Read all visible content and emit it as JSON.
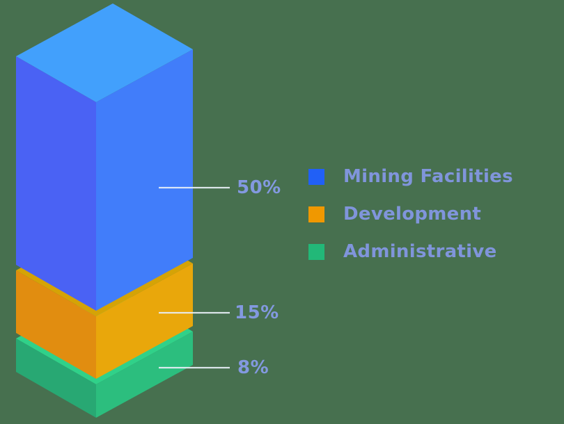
{
  "chart_data": {
    "type": "bar",
    "variant": "isometric-3d-stacked-column",
    "title": "",
    "unit": "%",
    "legend_position": "right",
    "grid": false,
    "segments": [
      {
        "label": "Mining Facilities",
        "value": 50,
        "value_label": "50%",
        "colors": {
          "top": "#42A0FC",
          "left": "#4A62F4",
          "right": "#417DFA"
        },
        "legend_color": "#2160F6"
      },
      {
        "label": "Development",
        "value": 15,
        "value_label": "15%",
        "colors": {
          "top": "#D5A306",
          "left": "#E18D10",
          "right": "#E9A70B"
        },
        "legend_color": "#F09800"
      },
      {
        "label": "Administrative",
        "value": 8,
        "value_label": "8%",
        "colors": {
          "top": "#30D189",
          "left": "#28A873",
          "right": "#2CBE7E"
        },
        "legend_color": "#22B878"
      }
    ]
  },
  "colors": {
    "background": "#47704F",
    "value_label_text": "#8399E0",
    "legend_text": "#8095DB",
    "leader_line": "#E8EFF7"
  }
}
